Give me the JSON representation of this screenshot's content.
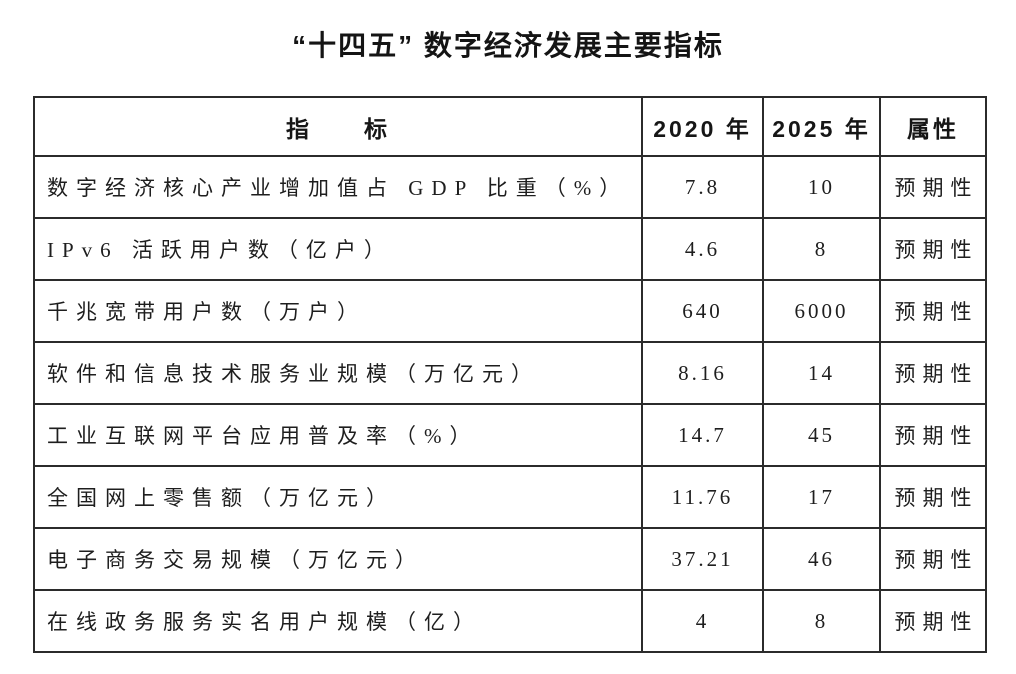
{
  "page": {
    "title": "“十四五” 数字经济发展主要指标"
  },
  "table": {
    "headers": {
      "indicator": "指　　标",
      "y2020": "2020 年",
      "y2025": "2025 年",
      "attribute": "属性"
    },
    "rows": [
      {
        "indicator": "数字经济核心产业增加值占 GDP 比重（%）",
        "y2020": "7.8",
        "y2025": "10",
        "attribute": "预期性"
      },
      {
        "indicator": "IPv6 活跃用户数（亿户）",
        "y2020": "4.6",
        "y2025": "8",
        "attribute": "预期性"
      },
      {
        "indicator": "千兆宽带用户数（万户）",
        "y2020": "640",
        "y2025": "6000",
        "attribute": "预期性"
      },
      {
        "indicator": "软件和信息技术服务业规模（万亿元）",
        "y2020": "8.16",
        "y2025": "14",
        "attribute": "预期性"
      },
      {
        "indicator": "工业互联网平台应用普及率（%）",
        "y2020": "14.7",
        "y2025": "45",
        "attribute": "预期性"
      },
      {
        "indicator": "全国网上零售额（万亿元）",
        "y2020": "11.76",
        "y2025": "17",
        "attribute": "预期性"
      },
      {
        "indicator": "电子商务交易规模（万亿元）",
        "y2020": "37.21",
        "y2025": "46",
        "attribute": "预期性"
      },
      {
        "indicator": "在线政务服务实名用户规模（亿）",
        "y2020": "4",
        "y2025": "8",
        "attribute": "预期性"
      }
    ]
  }
}
